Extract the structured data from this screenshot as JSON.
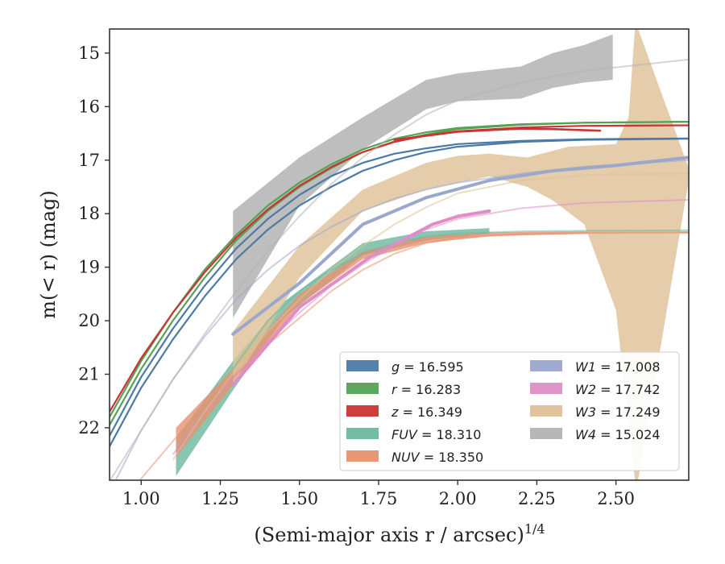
{
  "chart_data": {
    "type": "line",
    "xlabel": "(Semi-major axis r / arcsec)",
    "xlabel_sup": "1/4",
    "ylabel": "m(< r) (mag)",
    "xlim": [
      0.9,
      2.73
    ],
    "ylim": [
      22.98,
      14.55
    ],
    "y_inverted": true,
    "xticks": [
      "1.00",
      "1.25",
      "1.50",
      "1.75",
      "2.00",
      "2.25",
      "2.50"
    ],
    "yticks": [
      "15",
      "16",
      "17",
      "18",
      "19",
      "20",
      "21",
      "22"
    ],
    "grid": false,
    "legend_position": "lower-right",
    "series": [
      {
        "name": "g = 16.595",
        "color": "#4c7aa6",
        "model": [
          [
            0.9,
            22.35
          ],
          [
            1.0,
            21.25
          ],
          [
            1.1,
            20.35
          ],
          [
            1.2,
            19.55
          ],
          [
            1.3,
            18.85
          ],
          [
            1.4,
            18.3
          ],
          [
            1.5,
            17.85
          ],
          [
            1.6,
            17.5
          ],
          [
            1.7,
            17.2
          ],
          [
            1.8,
            17.0
          ],
          [
            1.9,
            16.85
          ],
          [
            2.0,
            16.75
          ],
          [
            2.2,
            16.66
          ],
          [
            2.4,
            16.62
          ],
          [
            2.73,
            16.6
          ]
        ],
        "model2": [
          [
            0.9,
            22.15
          ],
          [
            1.0,
            21.05
          ],
          [
            1.1,
            20.15
          ],
          [
            1.2,
            19.35
          ],
          [
            1.3,
            18.65
          ],
          [
            1.4,
            18.1
          ],
          [
            1.5,
            17.65
          ],
          [
            1.6,
            17.3
          ],
          [
            1.7,
            17.05
          ],
          [
            1.8,
            16.88
          ],
          [
            1.9,
            16.78
          ],
          [
            2.0,
            16.7
          ],
          [
            2.2,
            16.64
          ],
          [
            2.4,
            16.61
          ],
          [
            2.73,
            16.595
          ]
        ],
        "data": [],
        "band_lower": [],
        "band_upper": []
      },
      {
        "name": "r = 16.283",
        "color": "#55a255",
        "model": [
          [
            0.9,
            21.95
          ],
          [
            1.0,
            20.9
          ],
          [
            1.1,
            20.0
          ],
          [
            1.2,
            19.2
          ],
          [
            1.3,
            18.5
          ],
          [
            1.4,
            17.95
          ],
          [
            1.5,
            17.5
          ],
          [
            1.6,
            17.15
          ],
          [
            1.7,
            16.85
          ],
          [
            1.8,
            16.65
          ],
          [
            1.9,
            16.52
          ],
          [
            2.0,
            16.42
          ],
          [
            2.2,
            16.34
          ],
          [
            2.4,
            16.3
          ],
          [
            2.73,
            16.283
          ]
        ],
        "model2": [
          [
            0.9,
            21.8
          ],
          [
            1.0,
            20.75
          ],
          [
            1.1,
            19.85
          ],
          [
            1.2,
            19.05
          ],
          [
            1.3,
            18.4
          ],
          [
            1.4,
            17.85
          ],
          [
            1.5,
            17.42
          ],
          [
            1.6,
            17.08
          ],
          [
            1.7,
            16.8
          ],
          [
            1.8,
            16.6
          ],
          [
            1.9,
            16.48
          ],
          [
            2.0,
            16.4
          ],
          [
            2.2,
            16.33
          ],
          [
            2.4,
            16.3
          ],
          [
            2.73,
            16.283
          ]
        ],
        "data": [],
        "band_lower": [],
        "band_upper": []
      },
      {
        "name": "z = 16.349",
        "color": "#cc3333",
        "model": [
          [
            0.9,
            21.7
          ],
          [
            1.0,
            20.7
          ],
          [
            1.1,
            19.85
          ],
          [
            1.2,
            19.1
          ],
          [
            1.3,
            18.45
          ],
          [
            1.4,
            17.92
          ],
          [
            1.5,
            17.48
          ],
          [
            1.6,
            17.13
          ],
          [
            1.7,
            16.85
          ],
          [
            1.8,
            16.66
          ],
          [
            1.9,
            16.54
          ],
          [
            2.0,
            16.46
          ],
          [
            2.2,
            16.39
          ],
          [
            2.4,
            16.36
          ],
          [
            2.73,
            16.349
          ]
        ],
        "model2": [],
        "data": [
          [
            1.8,
            16.62
          ],
          [
            2.0,
            16.47
          ],
          [
            2.2,
            16.41
          ],
          [
            2.3,
            16.42
          ],
          [
            2.45,
            16.45
          ]
        ],
        "band_lower": [],
        "band_upper": []
      },
      {
        "name": "FUV = 18.310",
        "color": "#6cb89f",
        "model": [
          [
            1.29,
            20.9
          ],
          [
            1.4,
            20.0
          ],
          [
            1.5,
            19.45
          ],
          [
            1.6,
            19.05
          ],
          [
            1.7,
            18.75
          ],
          [
            1.8,
            18.55
          ],
          [
            1.9,
            18.43
          ],
          [
            2.0,
            18.37
          ],
          [
            2.2,
            18.33
          ],
          [
            2.4,
            18.32
          ],
          [
            2.73,
            18.31
          ]
        ],
        "model2": [],
        "data": [],
        "band_lower": [
          [
            1.11,
            22.9
          ],
          [
            1.29,
            21.3
          ],
          [
            1.45,
            19.95
          ],
          [
            1.7,
            18.78
          ],
          [
            1.9,
            18.5
          ],
          [
            2.1,
            18.38
          ]
        ],
        "band_upper": [
          [
            1.11,
            22.2
          ],
          [
            1.29,
            20.75
          ],
          [
            1.45,
            19.65
          ],
          [
            1.7,
            18.55
          ],
          [
            1.9,
            18.33
          ],
          [
            2.1,
            18.27
          ]
        ]
      },
      {
        "name": "NUV = 18.350",
        "color": "#e8916f",
        "model": [
          [
            0.9,
            23.8
          ],
          [
            1.0,
            22.95
          ],
          [
            1.1,
            22.25
          ],
          [
            1.2,
            21.6
          ],
          [
            1.3,
            21.0
          ],
          [
            1.4,
            20.45
          ],
          [
            1.5,
            19.95
          ],
          [
            1.6,
            19.45
          ],
          [
            1.7,
            19.05
          ],
          [
            1.8,
            18.75
          ],
          [
            1.9,
            18.55
          ],
          [
            2.0,
            18.45
          ],
          [
            2.2,
            18.38
          ],
          [
            2.4,
            18.36
          ],
          [
            2.73,
            18.35
          ]
        ],
        "model2": [],
        "data": [],
        "band_lower": [
          [
            1.11,
            22.55
          ],
          [
            1.29,
            21.2
          ],
          [
            1.5,
            19.7
          ],
          [
            1.7,
            18.85
          ],
          [
            1.9,
            18.55
          ],
          [
            2.1,
            18.42
          ],
          [
            2.4,
            18.38
          ],
          [
            2.73,
            18.37
          ]
        ],
        "band_upper": [
          [
            1.11,
            22.0
          ],
          [
            1.29,
            20.9
          ],
          [
            1.5,
            19.5
          ],
          [
            1.7,
            18.7
          ],
          [
            1.9,
            18.43
          ],
          [
            2.1,
            18.35
          ],
          [
            2.4,
            18.33
          ],
          [
            2.73,
            18.33
          ]
        ]
      },
      {
        "name": "W1 = 17.008",
        "color": "#9aa8cc",
        "model": [
          [
            0.9,
            23.2
          ],
          [
            1.0,
            22.05
          ],
          [
            1.1,
            21.1
          ],
          [
            1.2,
            20.3
          ],
          [
            1.3,
            19.6
          ],
          [
            1.4,
            19.05
          ],
          [
            1.5,
            18.6
          ],
          [
            1.6,
            18.25
          ],
          [
            1.7,
            17.95
          ],
          [
            1.8,
            17.72
          ],
          [
            1.9,
            17.55
          ],
          [
            2.0,
            17.42
          ],
          [
            2.2,
            17.25
          ],
          [
            2.4,
            17.12
          ],
          [
            2.73,
            17.0
          ]
        ],
        "model2": [],
        "data": [
          [
            1.29,
            20.25
          ],
          [
            1.5,
            19.3
          ],
          [
            1.7,
            18.2
          ],
          [
            1.9,
            17.7
          ],
          [
            2.1,
            17.38
          ],
          [
            2.3,
            17.2
          ],
          [
            2.5,
            17.1
          ],
          [
            2.73,
            16.95
          ]
        ],
        "band_lower": [],
        "band_upper": []
      },
      {
        "name": "W2 = 17.742",
        "color": "#de8ec7",
        "model": [
          [
            1.1,
            22.5
          ],
          [
            1.2,
            21.7
          ],
          [
            1.3,
            21.0
          ],
          [
            1.4,
            20.4
          ],
          [
            1.5,
            19.85
          ],
          [
            1.6,
            19.35
          ],
          [
            1.7,
            18.95
          ],
          [
            1.8,
            18.6
          ],
          [
            1.9,
            18.3
          ],
          [
            2.0,
            18.1
          ],
          [
            2.2,
            17.9
          ],
          [
            2.4,
            17.8
          ],
          [
            2.73,
            17.742
          ]
        ],
        "model2": [],
        "data": [
          [
            1.29,
            21.2
          ],
          [
            1.5,
            19.75
          ],
          [
            1.72,
            18.82
          ],
          [
            1.92,
            18.2
          ],
          [
            2.0,
            18.05
          ],
          [
            2.1,
            17.95
          ]
        ],
        "band_lower": [],
        "band_upper": []
      },
      {
        "name": "W3 = 17.249",
        "color": "#dfc196",
        "model": [
          [
            1.1,
            22.6
          ],
          [
            1.2,
            21.7
          ],
          [
            1.3,
            20.9
          ],
          [
            1.4,
            20.2
          ],
          [
            1.5,
            19.6
          ],
          [
            1.6,
            19.05
          ],
          [
            1.7,
            18.6
          ],
          [
            1.8,
            18.2
          ],
          [
            1.9,
            17.88
          ],
          [
            2.0,
            17.62
          ],
          [
            2.2,
            17.38
          ],
          [
            2.4,
            17.28
          ],
          [
            2.73,
            17.249
          ]
        ],
        "model2": [],
        "data": [],
        "band_lower": [
          [
            1.29,
            21.2
          ],
          [
            1.5,
            19.2
          ],
          [
            1.7,
            17.95
          ],
          [
            1.9,
            17.55
          ],
          [
            2.1,
            17.3
          ],
          [
            2.22,
            17.5
          ],
          [
            2.3,
            17.75
          ],
          [
            2.4,
            18.2
          ],
          [
            2.5,
            19.8
          ],
          [
            2.56,
            22.98
          ],
          [
            2.57,
            22.98
          ],
          [
            2.73,
            17.38
          ]
        ],
        "band_upper": [
          [
            1.29,
            20.2
          ],
          [
            1.5,
            18.6
          ],
          [
            1.7,
            17.55
          ],
          [
            1.9,
            17.05
          ],
          [
            2.0,
            16.92
          ],
          [
            2.1,
            16.88
          ],
          [
            2.22,
            16.95
          ],
          [
            2.35,
            16.75
          ],
          [
            2.5,
            16.7
          ],
          [
            2.54,
            16.2
          ],
          [
            2.56,
            14.55
          ],
          [
            2.57,
            14.55
          ],
          [
            2.73,
            17.15
          ]
        ]
      },
      {
        "name": "W4 = 15.024",
        "color": "#b3b3b3",
        "model": [
          [
            0.9,
            23.0
          ],
          [
            1.0,
            22.05
          ],
          [
            1.1,
            21.1
          ],
          [
            1.2,
            20.25
          ],
          [
            1.3,
            19.45
          ],
          [
            1.4,
            18.7
          ],
          [
            1.5,
            18.05
          ],
          [
            1.6,
            17.45
          ],
          [
            1.7,
            16.95
          ],
          [
            1.8,
            16.52
          ],
          [
            1.9,
            16.15
          ],
          [
            2.0,
            15.88
          ],
          [
            2.2,
            15.55
          ],
          [
            2.4,
            15.33
          ],
          [
            2.73,
            15.12
          ]
        ],
        "model2": [],
        "data": [],
        "band_lower": [
          [
            1.29,
            19.95
          ],
          [
            1.5,
            17.85
          ],
          [
            1.7,
            16.8
          ],
          [
            1.9,
            16.05
          ],
          [
            2.0,
            15.9
          ],
          [
            2.2,
            15.85
          ],
          [
            2.3,
            15.65
          ],
          [
            2.4,
            15.55
          ],
          [
            2.49,
            15.5
          ]
        ],
        "band_upper": [
          [
            1.29,
            17.95
          ],
          [
            1.5,
            16.95
          ],
          [
            1.7,
            16.2
          ],
          [
            1.9,
            15.5
          ],
          [
            2.0,
            15.38
          ],
          [
            2.2,
            15.25
          ],
          [
            2.3,
            15.0
          ],
          [
            2.4,
            14.85
          ],
          [
            2.49,
            14.65
          ]
        ]
      }
    ]
  }
}
